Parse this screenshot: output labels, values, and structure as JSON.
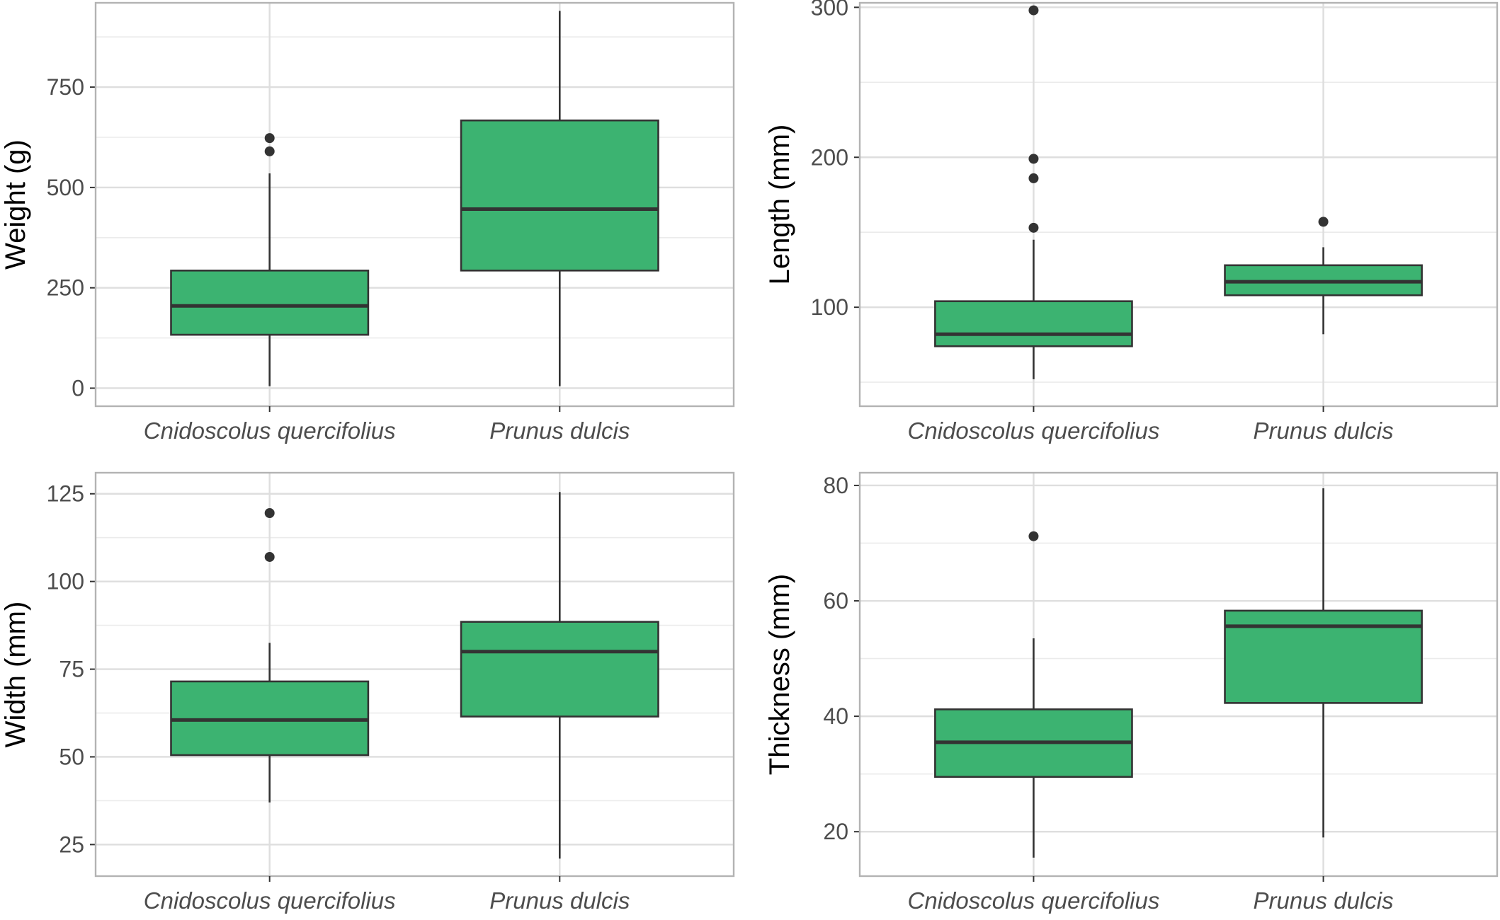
{
  "box_fill": "#3cb371",
  "chart_data": [
    {
      "type": "boxplot",
      "ylabel": "Weight (g)",
      "categories": [
        "Cnidoscolus quercifolius",
        "Prunus dulcis"
      ],
      "ylim": [
        -45,
        960
      ],
      "yticks": [
        0,
        250,
        500,
        750
      ],
      "boxes": [
        {
          "min": 5,
          "q1": 133,
          "median": 205,
          "q3": 293,
          "max": 535,
          "outliers": [
            590,
            623
          ]
        },
        {
          "min": 5,
          "q1": 293,
          "median": 446,
          "q3": 667,
          "max": 940,
          "outliers": []
        }
      ]
    },
    {
      "type": "boxplot",
      "ylabel": "Length (mm)",
      "categories": [
        "Cnidoscolus quercifolius",
        "Prunus dulcis"
      ],
      "ylim": [
        34,
        303
      ],
      "yticks": [
        100,
        200,
        300
      ],
      "boxes": [
        {
          "min": 52,
          "q1": 74,
          "median": 82,
          "q3": 104,
          "max": 145,
          "outliers": [
            153,
            186,
            199,
            298
          ]
        },
        {
          "min": 82,
          "q1": 108,
          "median": 117,
          "q3": 128,
          "max": 140,
          "outliers": [
            157
          ]
        }
      ]
    },
    {
      "type": "boxplot",
      "ylabel": "Width (mm)",
      "categories": [
        "Cnidoscolus quercifolius",
        "Prunus dulcis"
      ],
      "ylim": [
        16,
        131
      ],
      "yticks": [
        25,
        50,
        75,
        100,
        125
      ],
      "boxes": [
        {
          "min": 37,
          "q1": 50.5,
          "median": 60.5,
          "q3": 71.5,
          "max": 82.5,
          "outliers": [
            107,
            119.5
          ]
        },
        {
          "min": 21,
          "q1": 61.5,
          "median": 80,
          "q3": 88.5,
          "max": 125.5,
          "outliers": []
        }
      ]
    },
    {
      "type": "boxplot",
      "ylabel": "Thickness (mm)",
      "categories": [
        "Cnidoscolus quercifolius",
        "Prunus dulcis"
      ],
      "ylim": [
        12.3,
        82.2
      ],
      "yticks": [
        20,
        40,
        60,
        80
      ],
      "boxes": [
        {
          "min": 15.5,
          "q1": 29.5,
          "median": 35.5,
          "q3": 41.2,
          "max": 53.5,
          "outliers": [
            71.2
          ]
        },
        {
          "min": 19,
          "q1": 42.3,
          "median": 55.6,
          "q3": 58.3,
          "max": 79.5,
          "outliers": []
        }
      ]
    }
  ]
}
